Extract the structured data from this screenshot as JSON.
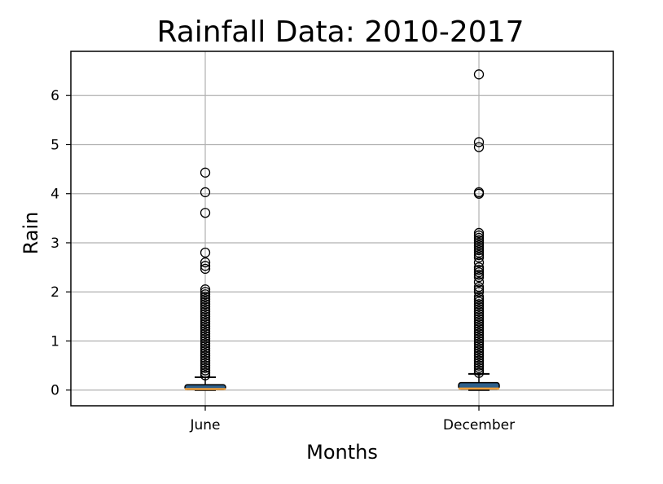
{
  "chart_data": {
    "type": "boxplot",
    "title": "Rainfall Data: 2010-2017",
    "xlabel": "Months",
    "ylabel": "Rain",
    "ylim": [
      -0.32,
      6.9
    ],
    "yticks": [
      0,
      1,
      2,
      3,
      4,
      5,
      6
    ],
    "grid": true,
    "categories": [
      "June",
      "December"
    ],
    "colors": {
      "box_fill": "#2e5f8a",
      "median": "#f0a03c",
      "grid": "#b0b0b0"
    },
    "boxes": [
      {
        "category": "June",
        "min": 0,
        "q1": 0.01,
        "median": 0.02,
        "q3": 0.11,
        "whisker_high": 0.26,
        "fliers": [
          4.43,
          4.03,
          3.61,
          2.8,
          2.6,
          2.53,
          2.47,
          2.05,
          2.0,
          1.95,
          1.9,
          1.85,
          1.8,
          1.75,
          1.7,
          1.65,
          1.6,
          1.55,
          1.5,
          1.45,
          1.4,
          1.35,
          1.3,
          1.25,
          1.2,
          1.15,
          1.1,
          1.05,
          1.0,
          0.95,
          0.9,
          0.85,
          0.8,
          0.75,
          0.7,
          0.65,
          0.6,
          0.55,
          0.5,
          0.45,
          0.4,
          0.35,
          0.3
        ]
      },
      {
        "category": "December",
        "min": 0,
        "q1": 0.02,
        "median": 0.03,
        "q3": 0.15,
        "whisker_high": 0.33,
        "fliers": [
          6.43,
          5.05,
          4.95,
          4.03,
          4.0,
          3.2,
          3.15,
          3.1,
          3.05,
          3.0,
          2.95,
          2.9,
          2.85,
          2.8,
          2.75,
          2.7,
          2.6,
          2.5,
          2.45,
          2.4,
          2.35,
          2.3,
          2.2,
          2.1,
          2.05,
          2.0,
          1.9,
          1.85,
          1.8,
          1.75,
          1.7,
          1.65,
          1.6,
          1.55,
          1.5,
          1.45,
          1.4,
          1.35,
          1.3,
          1.25,
          1.2,
          1.15,
          1.1,
          1.05,
          1.0,
          0.95,
          0.9,
          0.85,
          0.8,
          0.75,
          0.7,
          0.65,
          0.6,
          0.55,
          0.5,
          0.45,
          0.4,
          0.35
        ]
      }
    ]
  }
}
